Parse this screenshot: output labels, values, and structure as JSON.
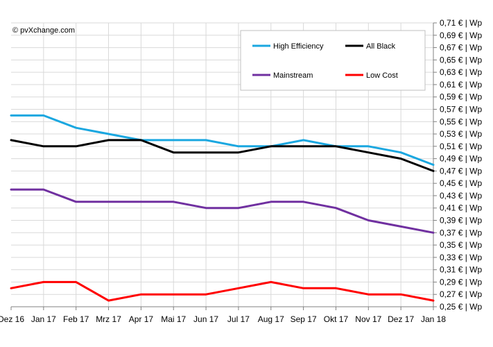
{
  "chart_data": {
    "type": "line",
    "copyright": "© pvXchange.com",
    "categories": [
      "Dez 16",
      "Jan 17",
      "Feb 17",
      "Mrz 17",
      "Apr 17",
      "Mai 17",
      "Jun 17",
      "Jul 17",
      "Aug 17",
      "Sep 17",
      "Okt 17",
      "Nov 17",
      "Dez 17",
      "Jan 18"
    ],
    "y_ticks": [
      "0,25 € | Wp",
      "0,27 € | Wp",
      "0,29 € | Wp",
      "0,31 € | Wp",
      "0,33 € | Wp",
      "0,35 € | Wp",
      "0,37 € | Wp",
      "0,39 € | Wp",
      "0,41 € | Wp",
      "0,43 € | Wp",
      "0,45 € | Wp",
      "0,47 € | Wp",
      "0,49 € | Wp",
      "0,51 € | Wp",
      "0,53 € | Wp",
      "0,55 € | Wp",
      "0,57 € | Wp",
      "0,59 € | Wp",
      "0,61 € | Wp",
      "0,63 € | Wp",
      "0,65 € | Wp",
      "0,67 € | Wp",
      "0,69 € | Wp",
      "0,71 € | Wp"
    ],
    "ylim": [
      0.25,
      0.71
    ],
    "y_axis_position": "right",
    "grid": true,
    "legend_position": "top-right",
    "series": [
      {
        "name": "High Efficiency",
        "color": "#1aa7e0",
        "values": [
          0.56,
          0.56,
          0.54,
          0.53,
          0.52,
          0.52,
          0.52,
          0.51,
          0.51,
          0.52,
          0.51,
          0.51,
          0.5,
          0.48
        ]
      },
      {
        "name": "All Black",
        "color": "#000000",
        "values": [
          0.52,
          0.51,
          0.51,
          0.52,
          0.52,
          0.5,
          0.5,
          0.5,
          0.51,
          0.51,
          0.51,
          0.5,
          0.49,
          0.47
        ]
      },
      {
        "name": "Mainstream",
        "color": "#7030a0",
        "values": [
          0.44,
          0.44,
          0.42,
          0.42,
          0.42,
          0.42,
          0.41,
          0.41,
          0.42,
          0.42,
          0.41,
          0.39,
          0.38,
          0.37
        ]
      },
      {
        "name": "Low Cost",
        "color": "#ff0000",
        "values": [
          0.28,
          0.29,
          0.29,
          0.26,
          0.27,
          0.27,
          0.27,
          0.28,
          0.29,
          0.28,
          0.28,
          0.27,
          0.27,
          0.26
        ]
      }
    ]
  }
}
